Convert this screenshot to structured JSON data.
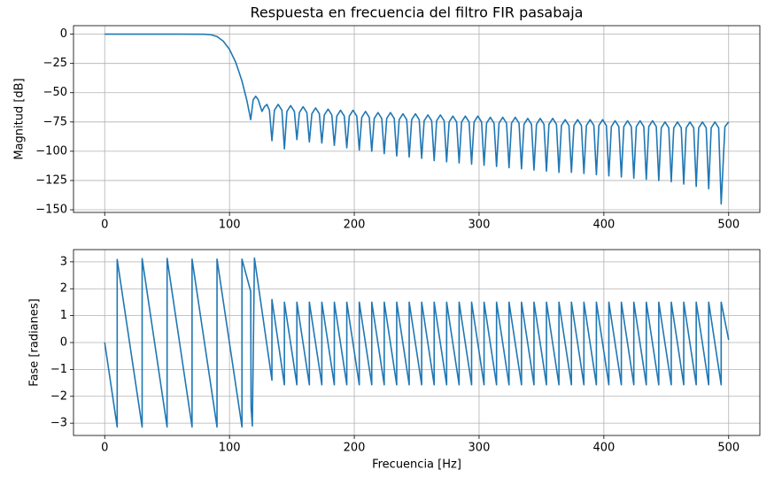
{
  "chart_data": [
    {
      "type": "line",
      "title": "Respuesta en frecuencia del filtro FIR pasabaja",
      "ylabel": "Magnitud [dB]",
      "color": "#1f77b4",
      "grid": true,
      "xlim": [
        -25,
        525
      ],
      "ylim": [
        -152.25,
        7.25
      ],
      "xticks": [
        0,
        100,
        200,
        300,
        400,
        500
      ],
      "yticks": [
        0,
        {
          "value": -25,
          "label": "−25"
        },
        {
          "value": -50,
          "label": "−50"
        },
        {
          "value": -75,
          "label": "−75"
        },
        {
          "value": -100,
          "label": "−100"
        },
        {
          "value": -125,
          "label": "−125"
        },
        {
          "value": -150,
          "label": "−150"
        }
      ],
      "x": [
        0,
        20,
        40,
        60,
        80,
        85,
        90,
        95,
        100,
        105,
        110,
        114,
        117,
        119,
        121,
        123,
        126,
        128,
        130,
        132,
        134,
        136,
        139,
        142,
        144,
        146,
        149,
        152,
        154,
        156,
        159,
        162,
        164,
        166,
        169,
        172,
        174,
        176,
        179,
        182,
        184,
        186,
        189,
        192,
        194,
        196,
        199,
        202,
        204,
        206,
        209,
        212,
        214,
        216,
        219,
        222,
        224,
        226,
        229,
        232,
        234,
        236,
        239,
        242,
        244,
        246,
        249,
        252,
        254,
        256,
        259,
        262,
        264,
        266,
        269,
        272,
        274,
        276,
        279,
        282,
        284,
        286,
        289,
        292,
        294,
        296,
        299,
        302,
        304,
        306,
        309,
        312,
        314,
        316,
        319,
        322,
        324,
        326,
        329,
        332,
        334,
        336,
        339,
        342,
        344,
        346,
        349,
        352,
        354,
        356,
        359,
        362,
        364,
        366,
        369,
        372,
        374,
        376,
        379,
        382,
        384,
        386,
        389,
        392,
        394,
        396,
        399,
        402,
        404,
        406,
        409,
        412,
        414,
        416,
        419,
        422,
        424,
        426,
        429,
        432,
        434,
        436,
        439,
        442,
        444,
        446,
        449,
        452,
        454,
        456,
        459,
        462,
        464,
        466,
        469,
        472,
        474,
        476,
        479,
        482,
        484,
        486,
        489,
        492,
        494,
        497,
        500
      ],
      "values": [
        0,
        0,
        0,
        0,
        -0.1,
        -0.5,
        -2,
        -6,
        -13,
        -24,
        -40,
        -57,
        -73,
        -56,
        -53,
        -56,
        -66,
        -62,
        -60,
        -65,
        -91,
        -65,
        -60,
        -65,
        -98,
        -66,
        -61,
        -66,
        -90,
        -67,
        -62,
        -67,
        -92,
        -68,
        -63,
        -68,
        -93,
        -69,
        -64,
        -69,
        -95,
        -70,
        -65,
        -70,
        -97,
        -70,
        -65,
        -70,
        -99,
        -71,
        -66,
        -71,
        -100,
        -72,
        -67,
        -72,
        -102,
        -72,
        -67,
        -72,
        -104,
        -73,
        -68,
        -73,
        -105,
        -73,
        -68,
        -73,
        -106,
        -74,
        -69,
        -74,
        -108,
        -74,
        -69,
        -74,
        -109,
        -75,
        -70,
        -75,
        -110,
        -75,
        -70,
        -75,
        -111,
        -75,
        -70,
        -75,
        -112,
        -76,
        -71,
        -76,
        -113,
        -76,
        -71,
        -76,
        -114,
        -76,
        -71,
        -76,
        -115,
        -77,
        -72,
        -77,
        -116,
        -77,
        -72,
        -77,
        -117,
        -77,
        -72,
        -77,
        -118,
        -78,
        -73,
        -78,
        -118,
        -78,
        -73,
        -78,
        -119,
        -78,
        -73,
        -78,
        -120,
        -78,
        -73,
        -78,
        -121,
        -79,
        -74,
        -79,
        -122,
        -79,
        -74,
        -79,
        -123,
        -79,
        -74,
        -79,
        -124,
        -79,
        -74,
        -79,
        -125,
        -80,
        -75,
        -80,
        -126,
        -80,
        -75,
        -80,
        -128,
        -80,
        -75,
        -80,
        -130,
        -80,
        -75,
        -80,
        -132,
        -80,
        -75,
        -80,
        -145,
        -79,
        -75
      ]
    },
    {
      "type": "line",
      "xlabel": "Frecuencia [Hz]",
      "ylabel": "Fase [radianes]",
      "color": "#1f77b4",
      "grid": true,
      "xlim": [
        -25,
        525
      ],
      "ylim": [
        -3.456,
        3.456
      ],
      "xticks": [
        0,
        100,
        200,
        300,
        400,
        500
      ],
      "yticks": [
        {
          "value": -3,
          "label": "−3"
        },
        {
          "value": -2,
          "label": "−2"
        },
        {
          "value": -1,
          "label": "−1"
        },
        0,
        1,
        2,
        3
      ],
      "x": [
        0,
        10,
        10,
        30,
        30,
        50,
        50,
        70,
        70,
        90,
        90,
        110,
        110,
        117,
        117.3,
        118.3,
        120,
        134,
        134,
        144,
        144,
        154,
        154,
        164,
        164,
        174,
        174,
        184,
        184,
        194,
        194,
        204,
        204,
        214,
        214,
        224,
        224,
        234,
        234,
        244,
        244,
        254,
        254,
        264,
        264,
        274,
        274,
        284,
        284,
        294,
        294,
        304,
        304,
        314,
        314,
        324,
        324,
        334,
        334,
        344,
        344,
        354,
        354,
        364,
        364,
        374,
        374,
        384,
        384,
        394,
        394,
        404,
        404,
        414,
        414,
        424,
        424,
        434,
        434,
        444,
        444,
        454,
        454,
        464,
        464,
        474,
        474,
        484,
        484,
        494,
        494,
        500
      ],
      "values": [
        0,
        -3.14,
        3.09,
        -3.14,
        3.12,
        -3.14,
        3.13,
        -3.14,
        3.1,
        -3.14,
        3.1,
        -3.14,
        3.1,
        1.9,
        -2.4,
        -3.1,
        3.14,
        -1.4,
        1.6,
        -1.57,
        1.5,
        -1.57,
        1.5,
        -1.57,
        1.5,
        -1.57,
        1.5,
        -1.57,
        1.5,
        -1.57,
        1.5,
        -1.57,
        1.5,
        -1.57,
        1.5,
        -1.57,
        1.5,
        -1.57,
        1.5,
        -1.57,
        1.5,
        -1.57,
        1.5,
        -1.57,
        1.5,
        -1.57,
        1.5,
        -1.57,
        1.5,
        -1.57,
        1.5,
        -1.57,
        1.5,
        -1.57,
        1.5,
        -1.57,
        1.5,
        -1.57,
        1.5,
        -1.57,
        1.5,
        -1.57,
        1.5,
        -1.57,
        1.5,
        -1.57,
        1.5,
        -1.57,
        1.5,
        -1.57,
        1.5,
        -1.57,
        1.5,
        -1.57,
        1.5,
        -1.57,
        1.5,
        -1.57,
        1.5,
        -1.57,
        1.5,
        -1.57,
        1.5,
        -1.57,
        1.5,
        -1.57,
        1.5,
        -1.57,
        1.5,
        -1.57,
        1.5,
        0.1
      ]
    }
  ]
}
